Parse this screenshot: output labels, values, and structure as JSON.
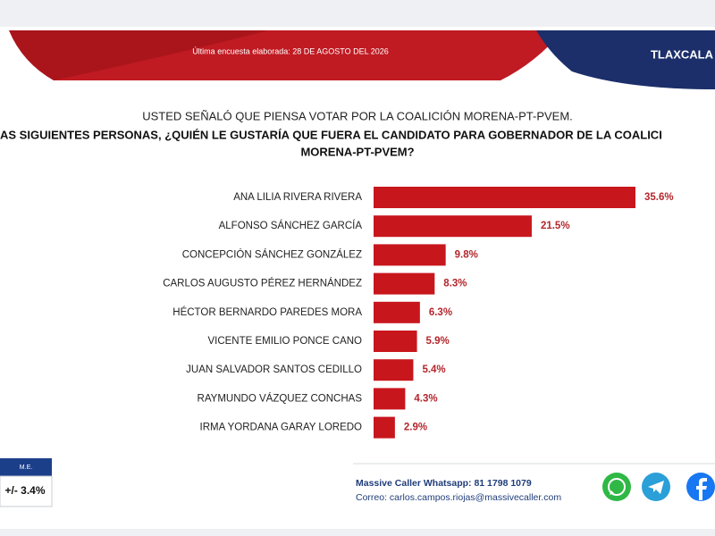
{
  "chart_data": {
    "type": "bar",
    "orientation": "horizontal",
    "header": "Última encuesta elaborada: 28 DE AGOSTO DEL 2026",
    "region": "TLAXCALA",
    "title": [
      "USTED SEÑALÓ QUE PIENSA VOTAR POR LA COALICIÓN MORENA-PT-PVEM.",
      "AS SIGUIENTES PERSONAS, ¿QUIÉN LE GUSTARÍA QUE FUERA EL CANDIDATO PARA GOBERNADOR DE LA COALICI",
      "MORENA-PT-PVEM?"
    ],
    "categories": [
      "ANA LILIA RIVERA RIVERA",
      "ALFONSO SÁNCHEZ GARCÍA",
      "CONCEPCIÓN SÁNCHEZ GONZÁLEZ",
      "CARLOS AUGUSTO PÉREZ HERNÁNDEZ",
      "HÉCTOR BERNARDO PAREDES MORA",
      "VICENTE EMILIO PONCE CANO",
      "JUAN SALVADOR SANTOS CEDILLO",
      "RAYMUNDO VÁZQUEZ CONCHAS",
      "IRMA YORDANA GARAY LOREDO"
    ],
    "values": [
      35.6,
      21.5,
      9.8,
      8.3,
      6.3,
      5.9,
      5.4,
      4.3,
      2.9
    ],
    "value_labels": [
      "35.6%",
      "21.5%",
      "9.8%",
      "8.3%",
      "6.3%",
      "5.9%",
      "5.4%",
      "4.3%",
      "2.9%"
    ],
    "color": "#c8161d",
    "margin_of_error_label": "M.E.",
    "margin_of_error": "+/- 3.4%",
    "contact": [
      "Massive Caller Whatsapp: 81 1798 1079",
      "Correo: carlos.campos.riojas@massivecaller.com"
    ]
  }
}
